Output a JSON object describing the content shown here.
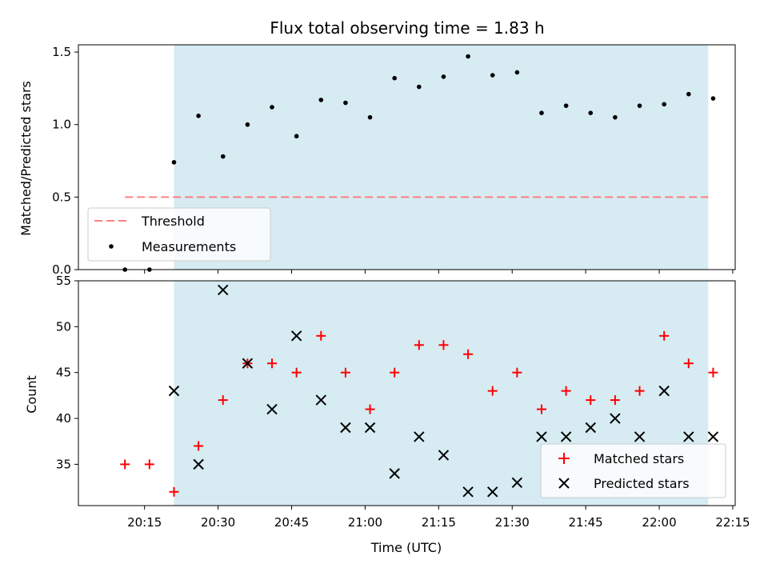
{
  "chart_data": [
    {
      "type": "scatter",
      "title": "Flux total observing time = 1.83 h",
      "xlabel": "",
      "ylabel": "Matched/Predicted stars",
      "ylim": [
        0,
        1.55
      ],
      "yticks": [
        "0.0",
        "0.5",
        "1.0",
        "1.5"
      ],
      "xlim_minutes": [
        1201.5,
        1335.5
      ],
      "shaded_span": [
        "20:21",
        "22:10"
      ],
      "shade_color": "#add8e6",
      "legend_position": "lower-left",
      "series": [
        {
          "name": "Threshold",
          "kind": "dashed-line",
          "color": "#ff7f7f",
          "x": [
            "20:11",
            "22:10"
          ],
          "y": [
            0.5,
            0.5
          ]
        },
        {
          "name": "Measurements",
          "kind": "point",
          "color": "#000000",
          "x": [
            "20:11",
            "20:16",
            "20:21",
            "20:26",
            "20:31",
            "20:36",
            "20:41",
            "20:46",
            "20:51",
            "20:56",
            "21:01",
            "21:06",
            "21:11",
            "21:16",
            "21:21",
            "21:26",
            "21:31",
            "21:36",
            "21:41",
            "21:46",
            "21:51",
            "21:56",
            "22:01",
            "22:06",
            "22:11"
          ],
          "y": [
            0.0,
            0.0,
            0.74,
            1.06,
            0.78,
            1.0,
            1.12,
            0.92,
            1.17,
            1.15,
            1.05,
            1.32,
            1.26,
            1.33,
            1.47,
            1.34,
            1.36,
            1.08,
            1.13,
            1.08,
            1.05,
            1.13,
            1.14,
            1.21,
            1.18
          ]
        }
      ]
    },
    {
      "type": "scatter",
      "title": "",
      "xlabel": "Time (UTC)",
      "ylabel": "Count",
      "ylim": [
        30.5,
        55
      ],
      "yticks": [
        "35",
        "40",
        "45",
        "50",
        "55"
      ],
      "xticks": [
        "20:15",
        "20:30",
        "20:45",
        "21:00",
        "21:15",
        "21:30",
        "21:45",
        "22:00",
        "22:15"
      ],
      "xlim_minutes": [
        1201.5,
        1335.5
      ],
      "shaded_span": [
        "20:21",
        "22:10"
      ],
      "legend_position": "lower-right",
      "series": [
        {
          "name": "Matched stars",
          "kind": "plus",
          "color": "#ff0000",
          "x": [
            "20:11",
            "20:16",
            "20:21",
            "20:26",
            "20:31",
            "20:36",
            "20:41",
            "20:46",
            "20:51",
            "20:56",
            "21:01",
            "21:06",
            "21:11",
            "21:16",
            "21:21",
            "21:26",
            "21:31",
            "21:36",
            "21:41",
            "21:46",
            "21:51",
            "21:56",
            "22:01",
            "22:06",
            "22:11"
          ],
          "y": [
            35,
            35,
            32,
            37,
            42,
            46,
            46,
            45,
            49,
            45,
            41,
            45,
            48,
            48,
            47,
            43,
            45,
            41,
            43,
            42,
            42,
            43,
            49,
            46,
            45
          ]
        },
        {
          "name": "Predicted stars",
          "kind": "cross",
          "color": "#000000",
          "x": [
            "20:21",
            "20:26",
            "20:31",
            "20:36",
            "20:41",
            "20:46",
            "20:51",
            "20:56",
            "21:01",
            "21:06",
            "21:11",
            "21:16",
            "21:21",
            "21:26",
            "21:31",
            "21:36",
            "21:41",
            "21:46",
            "21:51",
            "21:56",
            "22:01",
            "22:06",
            "22:11"
          ],
          "y": [
            43,
            35,
            54,
            46,
            41,
            49,
            42,
            39,
            39,
            34,
            38,
            36,
            32,
            32,
            33,
            38,
            38,
            39,
            40,
            38,
            43,
            38,
            38
          ]
        }
      ]
    }
  ]
}
